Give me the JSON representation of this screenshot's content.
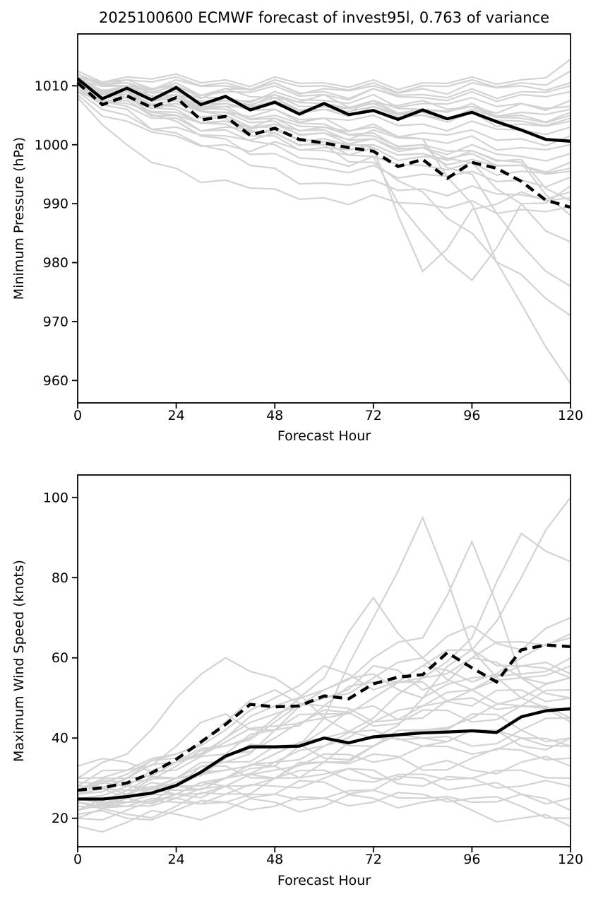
{
  "title": "2025100600 ECMWF forecast of invest95l, 0.763 of variance",
  "colors": {
    "member_line": "#d3d3d3",
    "summary_line": "#000000",
    "background": "#ffffff",
    "text": "#000000"
  },
  "chart_data": [
    {
      "type": "line",
      "panel": "minimum-pressure",
      "xlabel": "Forecast Hour",
      "ylabel": "Minimum Pressure (hPa)",
      "xlim": [
        0,
        120
      ],
      "ylim": [
        956.2,
        1018.8
      ],
      "xticks": [
        0,
        24,
        48,
        72,
        96,
        120
      ],
      "yticks": [
        960,
        970,
        980,
        990,
        1000,
        1010
      ],
      "grid": false,
      "legend": "none",
      "series_x": [
        0,
        6,
        12,
        18,
        24,
        30,
        36,
        42,
        48,
        54,
        60,
        66,
        72,
        78,
        84,
        90,
        96,
        102,
        108,
        114,
        120
      ],
      "series": [
        {
          "id": "solid",
          "style": "solid",
          "values": [
            1011.2,
            1007.8,
            1009.6,
            1007.6,
            1009.7,
            1006.8,
            1008.2,
            1005.9,
            1007.2,
            1005.2,
            1007.0,
            1005.1,
            1005.8,
            1004.3,
            1005.9,
            1004.4,
            1005.5,
            1003.9,
            1002.5,
            1000.9,
            1000.6
          ]
        },
        {
          "id": "dashed",
          "style": "dashed",
          "values": [
            1010.5,
            1006.8,
            1008.3,
            1006.3,
            1008.0,
            1004.2,
            1004.8,
            1001.6,
            1002.8,
            1000.9,
            1000.3,
            999.5,
            998.9,
            996.3,
            997.5,
            994.3,
            997.0,
            996.0,
            993.8,
            990.6,
            989.4
          ]
        }
      ],
      "members_x": [
        0,
        12,
        24,
        36,
        48,
        60,
        72,
        84,
        96,
        108,
        120
      ],
      "members": [
        [
          1011.5,
          1010.0,
          1010.5,
          1009.0,
          1010.0,
          1008.5,
          1009.5,
          1008.0,
          1009.0,
          1008.5,
          1009.0
        ],
        [
          1012.0,
          1010.5,
          1011.0,
          1010.0,
          1010.5,
          1009.5,
          1010.0,
          1009.5,
          1010.5,
          1010.0,
          1010.5
        ],
        [
          1011.0,
          1009.0,
          1010.0,
          1008.0,
          1009.0,
          1007.5,
          1008.5,
          1007.0,
          1008.0,
          1007.0,
          1007.5
        ],
        [
          1010.5,
          1008.5,
          1009.5,
          1007.5,
          1008.5,
          1006.5,
          1007.5,
          1006.0,
          1007.0,
          1005.5,
          1006.0
        ],
        [
          1011.0,
          1009.5,
          1008.0,
          1007.0,
          1007.5,
          1006.0,
          1006.5,
          1005.0,
          1005.5,
          1004.0,
          1004.5
        ],
        [
          1012.0,
          1011.0,
          1011.5,
          1010.5,
          1011.0,
          1010.0,
          1010.5,
          1010.0,
          1011.0,
          1010.5,
          1012.5
        ],
        [
          1011.5,
          1010.5,
          1009.0,
          1009.5,
          1008.0,
          1008.5,
          1007.0,
          1007.5,
          1006.5,
          1007.0,
          1006.5
        ],
        [
          1010.0,
          1008.0,
          1007.0,
          1005.5,
          1006.0,
          1004.5,
          1005.0,
          1003.5,
          1004.0,
          1002.5,
          1003.0
        ],
        [
          1010.5,
          1007.0,
          1005.5,
          1004.0,
          1004.5,
          1003.0,
          1003.5,
          1002.0,
          1002.5,
          1001.0,
          1001.5
        ],
        [
          1009.5,
          1006.5,
          1004.5,
          1003.0,
          1003.5,
          1002.0,
          1002.5,
          1001.0,
          1001.5,
          999.5,
          1000.0
        ],
        [
          1009.0,
          1005.0,
          1003.0,
          1001.5,
          1002.0,
          1000.5,
          1001.0,
          999.5,
          1000.0,
          998.0,
          998.5
        ],
        [
          1008.5,
          1004.0,
          1001.5,
          1000.0,
          1000.5,
          999.0,
          999.5,
          998.0,
          998.5,
          996.5,
          997.0
        ],
        [
          1008.0,
          1000.0,
          996.0,
          994.0,
          992.5,
          991.0,
          991.5,
          990.0,
          990.5,
          989.0,
          989.5
        ],
        [
          1009.5,
          1006.0,
          1002.0,
          999.0,
          996.0,
          993.5,
          994.0,
          992.5,
          993.0,
          991.5,
          992.0
        ],
        [
          1010.0,
          1007.5,
          1004.0,
          1001.0,
          998.5,
          996.0,
          996.5,
          995.0,
          995.5,
          994.0,
          994.5
        ],
        [
          1011.0,
          1008.0,
          1005.0,
          1002.5,
          1000.0,
          997.5,
          998.0,
          996.5,
          997.0,
          995.5,
          996.0
        ],
        [
          1010.5,
          1009.0,
          1007.5,
          1005.0,
          1003.0,
          1001.0,
          1000.0,
          998.5,
          997.5,
          996.5,
          995.5
        ],
        [
          1011.5,
          1009.5,
          1008.0,
          1006.5,
          1005.0,
          1003.5,
          1002.0,
          1000.0,
          999.0,
          997.5,
          990.5
        ],
        [
          1010.0,
          1008.5,
          1006.0,
          1004.0,
          1002.0,
          1000.0,
          997.0,
          992.0,
          985.0,
          978.0,
          971.0
        ],
        [
          1011.0,
          1009.0,
          1007.0,
          1005.5,
          1004.0,
          1002.0,
          999.5,
          978.5,
          989.0,
          992.0,
          991.0
        ],
        [
          1010.5,
          1008.5,
          1006.5,
          1004.5,
          1002.5,
          1000.5,
          998.0,
          985.0,
          977.0,
          990.0,
          993.0
        ],
        [
          1011.0,
          1010.0,
          1008.5,
          1007.0,
          1006.0,
          1004.5,
          1003.0,
          1001.0,
          990.0,
          973.0,
          959.5
        ],
        [
          1010.0,
          1009.0,
          1007.5,
          1006.0,
          1004.5,
          1003.0,
          1001.5,
          1000.0,
          995.0,
          983.0,
          976.0
        ],
        [
          1009.5,
          1008.0,
          1006.5,
          1005.0,
          1003.5,
          1002.5,
          1001.0,
          999.5,
          997.0,
          990.0,
          983.5
        ],
        [
          1011.5,
          1011.0,
          1010.0,
          1009.5,
          1010.5,
          1009.0,
          1009.5,
          1008.5,
          1009.5,
          1009.0,
          1010.0
        ],
        [
          1010.5,
          1009.5,
          1008.5,
          1007.5,
          1008.0,
          1006.5,
          1007.0,
          1005.5,
          1006.0,
          1004.5,
          1005.0
        ],
        [
          1011.0,
          1010.0,
          1009.0,
          1007.5,
          1008.5,
          1007.0,
          1007.5,
          1006.0,
          1006.5,
          1005.0,
          1005.5
        ],
        [
          1010.0,
          1009.0,
          1008.0,
          1006.5,
          1007.5,
          1006.0,
          1006.5,
          1005.0,
          1005.5,
          1003.5,
          1004.0
        ],
        [
          1009.0,
          1007.5,
          1005.0,
          1003.5,
          1001.5,
          999.5,
          1000.0,
          998.5,
          999.0,
          997.0,
          988.0
        ],
        [
          1012.5,
          1011.5,
          1012.0,
          1011.0,
          1011.5,
          1010.5,
          1011.0,
          1010.5,
          1011.5,
          1011.0,
          1014.5
        ]
      ]
    },
    {
      "type": "line",
      "panel": "maximum-wind-speed",
      "xlabel": "Forecast Hour",
      "ylabel": "Maximum Wind Speed (knots)",
      "xlim": [
        0,
        120
      ],
      "ylim": [
        12.9,
        105.6
      ],
      "xticks": [
        0,
        24,
        48,
        72,
        96,
        120
      ],
      "yticks": [
        20,
        40,
        60,
        80,
        100
      ],
      "grid": false,
      "legend": "none",
      "series_x": [
        0,
        6,
        12,
        18,
        24,
        30,
        36,
        42,
        48,
        54,
        60,
        66,
        72,
        78,
        84,
        90,
        96,
        102,
        108,
        114,
        120
      ],
      "series": [
        {
          "id": "solid",
          "style": "solid",
          "values": [
            24.8,
            24.8,
            25.4,
            26.3,
            28.2,
            31.5,
            35.5,
            37.8,
            37.8,
            38.0,
            40.0,
            38.8,
            40.3,
            40.8,
            41.3,
            41.5,
            41.8,
            41.4,
            45.3,
            46.8,
            47.3
          ]
        },
        {
          "id": "dashed",
          "style": "dashed",
          "values": [
            27.0,
            27.6,
            28.8,
            31.3,
            34.7,
            39.0,
            43.4,
            48.4,
            47.8,
            48.0,
            50.5,
            49.8,
            53.5,
            55.2,
            55.8,
            61.3,
            57.5,
            54.0,
            62.0,
            63.2,
            62.8
          ]
        }
      ],
      "members_x": [
        0,
        12,
        24,
        36,
        48,
        60,
        72,
        84,
        96,
        108,
        120
      ],
      "members": [
        [
          25,
          26,
          28,
          30,
          33,
          45,
          70,
          95,
          62,
          50,
          55
        ],
        [
          27,
          29,
          33,
          38,
          45,
          52,
          60,
          65,
          89,
          55,
          50
        ],
        [
          24,
          25,
          26,
          28,
          30,
          34,
          40,
          50,
          62,
          80,
          100
        ],
        [
          26,
          27,
          29,
          32,
          36,
          40,
          45,
          55,
          65,
          91,
          84
        ],
        [
          28,
          30,
          34,
          40,
          48,
          55,
          75,
          60,
          68,
          62,
          70
        ],
        [
          22,
          24,
          28,
          34,
          42,
          50,
          58,
          52,
          60,
          64,
          66
        ],
        [
          30,
          32,
          36,
          42,
          50,
          58,
          52,
          58,
          54,
          60,
          65
        ],
        [
          33,
          34,
          32,
          36,
          40,
          45,
          50,
          55,
          60,
          55,
          55
        ],
        [
          25,
          27,
          30,
          35,
          38,
          42,
          48,
          45,
          50,
          48,
          52
        ],
        [
          28,
          26,
          28,
          32,
          36,
          40,
          38,
          42,
          45,
          50,
          47
        ],
        [
          24,
          25,
          27,
          30,
          34,
          38,
          42,
          40,
          38,
          42,
          45
        ],
        [
          26,
          28,
          30,
          34,
          38,
          35,
          38,
          40,
          42,
          38,
          40
        ],
        [
          23,
          24,
          26,
          28,
          32,
          36,
          34,
          38,
          36,
          40,
          38
        ],
        [
          27,
          28,
          30,
          33,
          30,
          34,
          36,
          32,
          35,
          37,
          35
        ],
        [
          25,
          26,
          28,
          30,
          33,
          31,
          30,
          33,
          32,
          34,
          33
        ],
        [
          22,
          23,
          25,
          28,
          30,
          32,
          29,
          31,
          30,
          32,
          30
        ],
        [
          20,
          22,
          24,
          26,
          28,
          30,
          32,
          28,
          30,
          28,
          28
        ],
        [
          26,
          25,
          26,
          28,
          26,
          29,
          27,
          30,
          28,
          26,
          25
        ],
        [
          24,
          23,
          25,
          24,
          26,
          25,
          27,
          25,
          24,
          26,
          22
        ],
        [
          21,
          20,
          22,
          24,
          23,
          25,
          24,
          26,
          25,
          23,
          20
        ],
        [
          18,
          19,
          21,
          22,
          24,
          23,
          25,
          24,
          22,
          20,
          18
        ],
        [
          30,
          36,
          50,
          60,
          55,
          45,
          40,
          38,
          42,
          40,
          38
        ],
        [
          26,
          30,
          36,
          44,
          52,
          48,
          44,
          48,
          52,
          48,
          45
        ],
        [
          28,
          32,
          38,
          46,
          42,
          46,
          50,
          54,
          48,
          52,
          50
        ],
        [
          25,
          28,
          34,
          40,
          46,
          52,
          56,
          50,
          55,
          58,
          55
        ],
        [
          27,
          30,
          34,
          38,
          44,
          50,
          55,
          60,
          52,
          56,
          60
        ],
        [
          24,
          26,
          30,
          36,
          42,
          48,
          54,
          58,
          62,
          58,
          56
        ],
        [
          22,
          24,
          26,
          30,
          34,
          38,
          44,
          48,
          52,
          55,
          58
        ],
        [
          29,
          31,
          35,
          39,
          43,
          47,
          43,
          47,
          44,
          48,
          44
        ],
        [
          20,
          21,
          23,
          26,
          30,
          34,
          38,
          42,
          46,
          42,
          40
        ]
      ]
    }
  ]
}
